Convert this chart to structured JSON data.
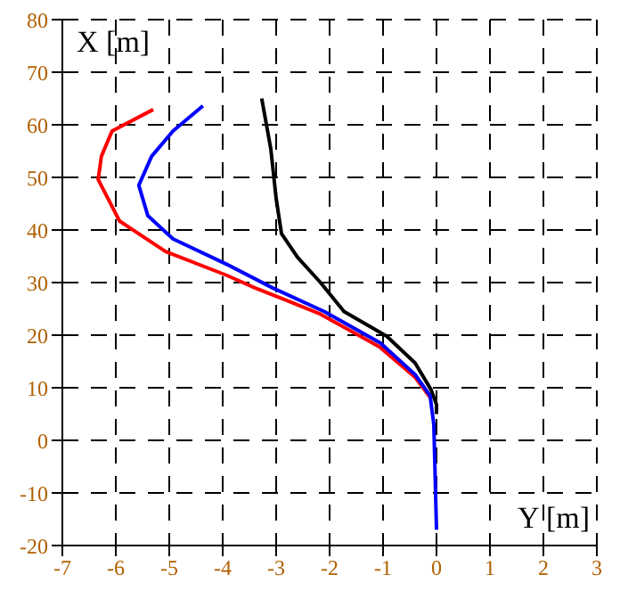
{
  "chart_data": {
    "type": "line",
    "xlabel": "Y [m]",
    "ylabel": "X [m]",
    "xlim": [
      -7,
      3
    ],
    "xticks": [
      -7,
      -6,
      -5,
      -4,
      -3,
      -2,
      -1,
      0,
      1,
      2,
      3
    ],
    "ylim": [
      -20,
      80
    ],
    "yticks": [
      -20,
      -10,
      0,
      10,
      20,
      30,
      40,
      50,
      60,
      70,
      80
    ],
    "grid": true,
    "marker": "none",
    "line_style": "solid",
    "legend": false,
    "series": [
      {
        "color": "#000000",
        "x": [
          -3.27,
          -3.1,
          -3.0,
          -2.9,
          -2.6,
          -2.17,
          -1.73,
          -0.93,
          -0.4,
          -0.1,
          0,
          0
        ],
        "values": [
          65,
          55.4,
          46,
          39.3,
          34.8,
          30,
          24.5,
          19.8,
          14.7,
          9.6,
          6.8,
          5
        ]
      },
      {
        "color": "#ff0000",
        "x": [
          -5.3,
          -6.07,
          -6.27,
          -6.33,
          -5.93,
          -5.07,
          -3.93,
          -3.4,
          -2.83,
          -2.17,
          -1.07,
          -0.4,
          -0.1
        ],
        "values": [
          62.9,
          58.8,
          54,
          49.6,
          41.7,
          35.9,
          31.4,
          29,
          26.7,
          24,
          17.8,
          12,
          7.9
        ]
      },
      {
        "color": "#0000ff",
        "x": [
          -4.37,
          -4.93,
          -5.33,
          -5.57,
          -5.4,
          -4.93,
          -3.93,
          -3.07,
          -2.1,
          -1.05,
          -0.4,
          -0.12,
          -0.05,
          0
        ],
        "values": [
          63.6,
          58.8,
          54,
          48.5,
          42.7,
          38.3,
          33.5,
          29,
          24.5,
          18.5,
          12.5,
          8.5,
          3,
          -17
        ]
      }
    ]
  }
}
